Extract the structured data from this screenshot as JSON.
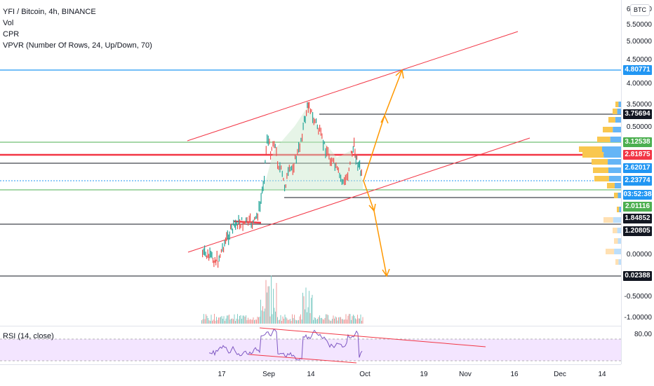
{
  "legend": {
    "symbol": "YFI / Bitcoin, 4h, BINANCE",
    "vol": "Vol",
    "cpr": "CPR",
    "vpvr": "VPVR (Number Of Rows, 24, Up/Down, 70)"
  },
  "rsi": {
    "label": "RSI (14, close)",
    "level": "80.00"
  },
  "currency": "BTC",
  "price_ticks": [
    "6.00000",
    "5.50000",
    "5.00000",
    "4.50000",
    "4.00000",
    "3.50000",
    "0.50000",
    "0.00000",
    "-0.50000",
    "-1.00000"
  ],
  "price_tags": [
    {
      "text": "4.80771",
      "color": "#2196f3"
    },
    {
      "text": "3.75694",
      "color": "#131722"
    },
    {
      "text": "3.12538",
      "color": "#4caf50"
    },
    {
      "text": "2.81875",
      "color": "#f23645"
    },
    {
      "text": "2.62017",
      "color": "#2196f3"
    },
    {
      "text": "2.23774",
      "color": "#2196f3"
    },
    {
      "text": "03:52:38",
      "color": "#2196f3"
    },
    {
      "text": "2.01116",
      "color": "#4caf50"
    },
    {
      "text": "1.84852",
      "color": "#131722"
    },
    {
      "text": "1.20805",
      "color": "#131722"
    },
    {
      "text": "0.02388",
      "color": "#131722"
    }
  ],
  "time_labels": [
    "17",
    "Sep",
    "14",
    "Oct",
    "19",
    "Nov",
    "16",
    "Dec",
    "14"
  ],
  "colors": {
    "channel": "#f23645",
    "up_candle": "#26a69a",
    "down_candle": "#ef5350",
    "arrow": "#ff9800",
    "blue_line": "#2196f3",
    "green_line": "#4caf50",
    "black_line": "#131722",
    "rsi_line": "#7e57c2",
    "rsi_bg": "#f3e5ff"
  }
}
